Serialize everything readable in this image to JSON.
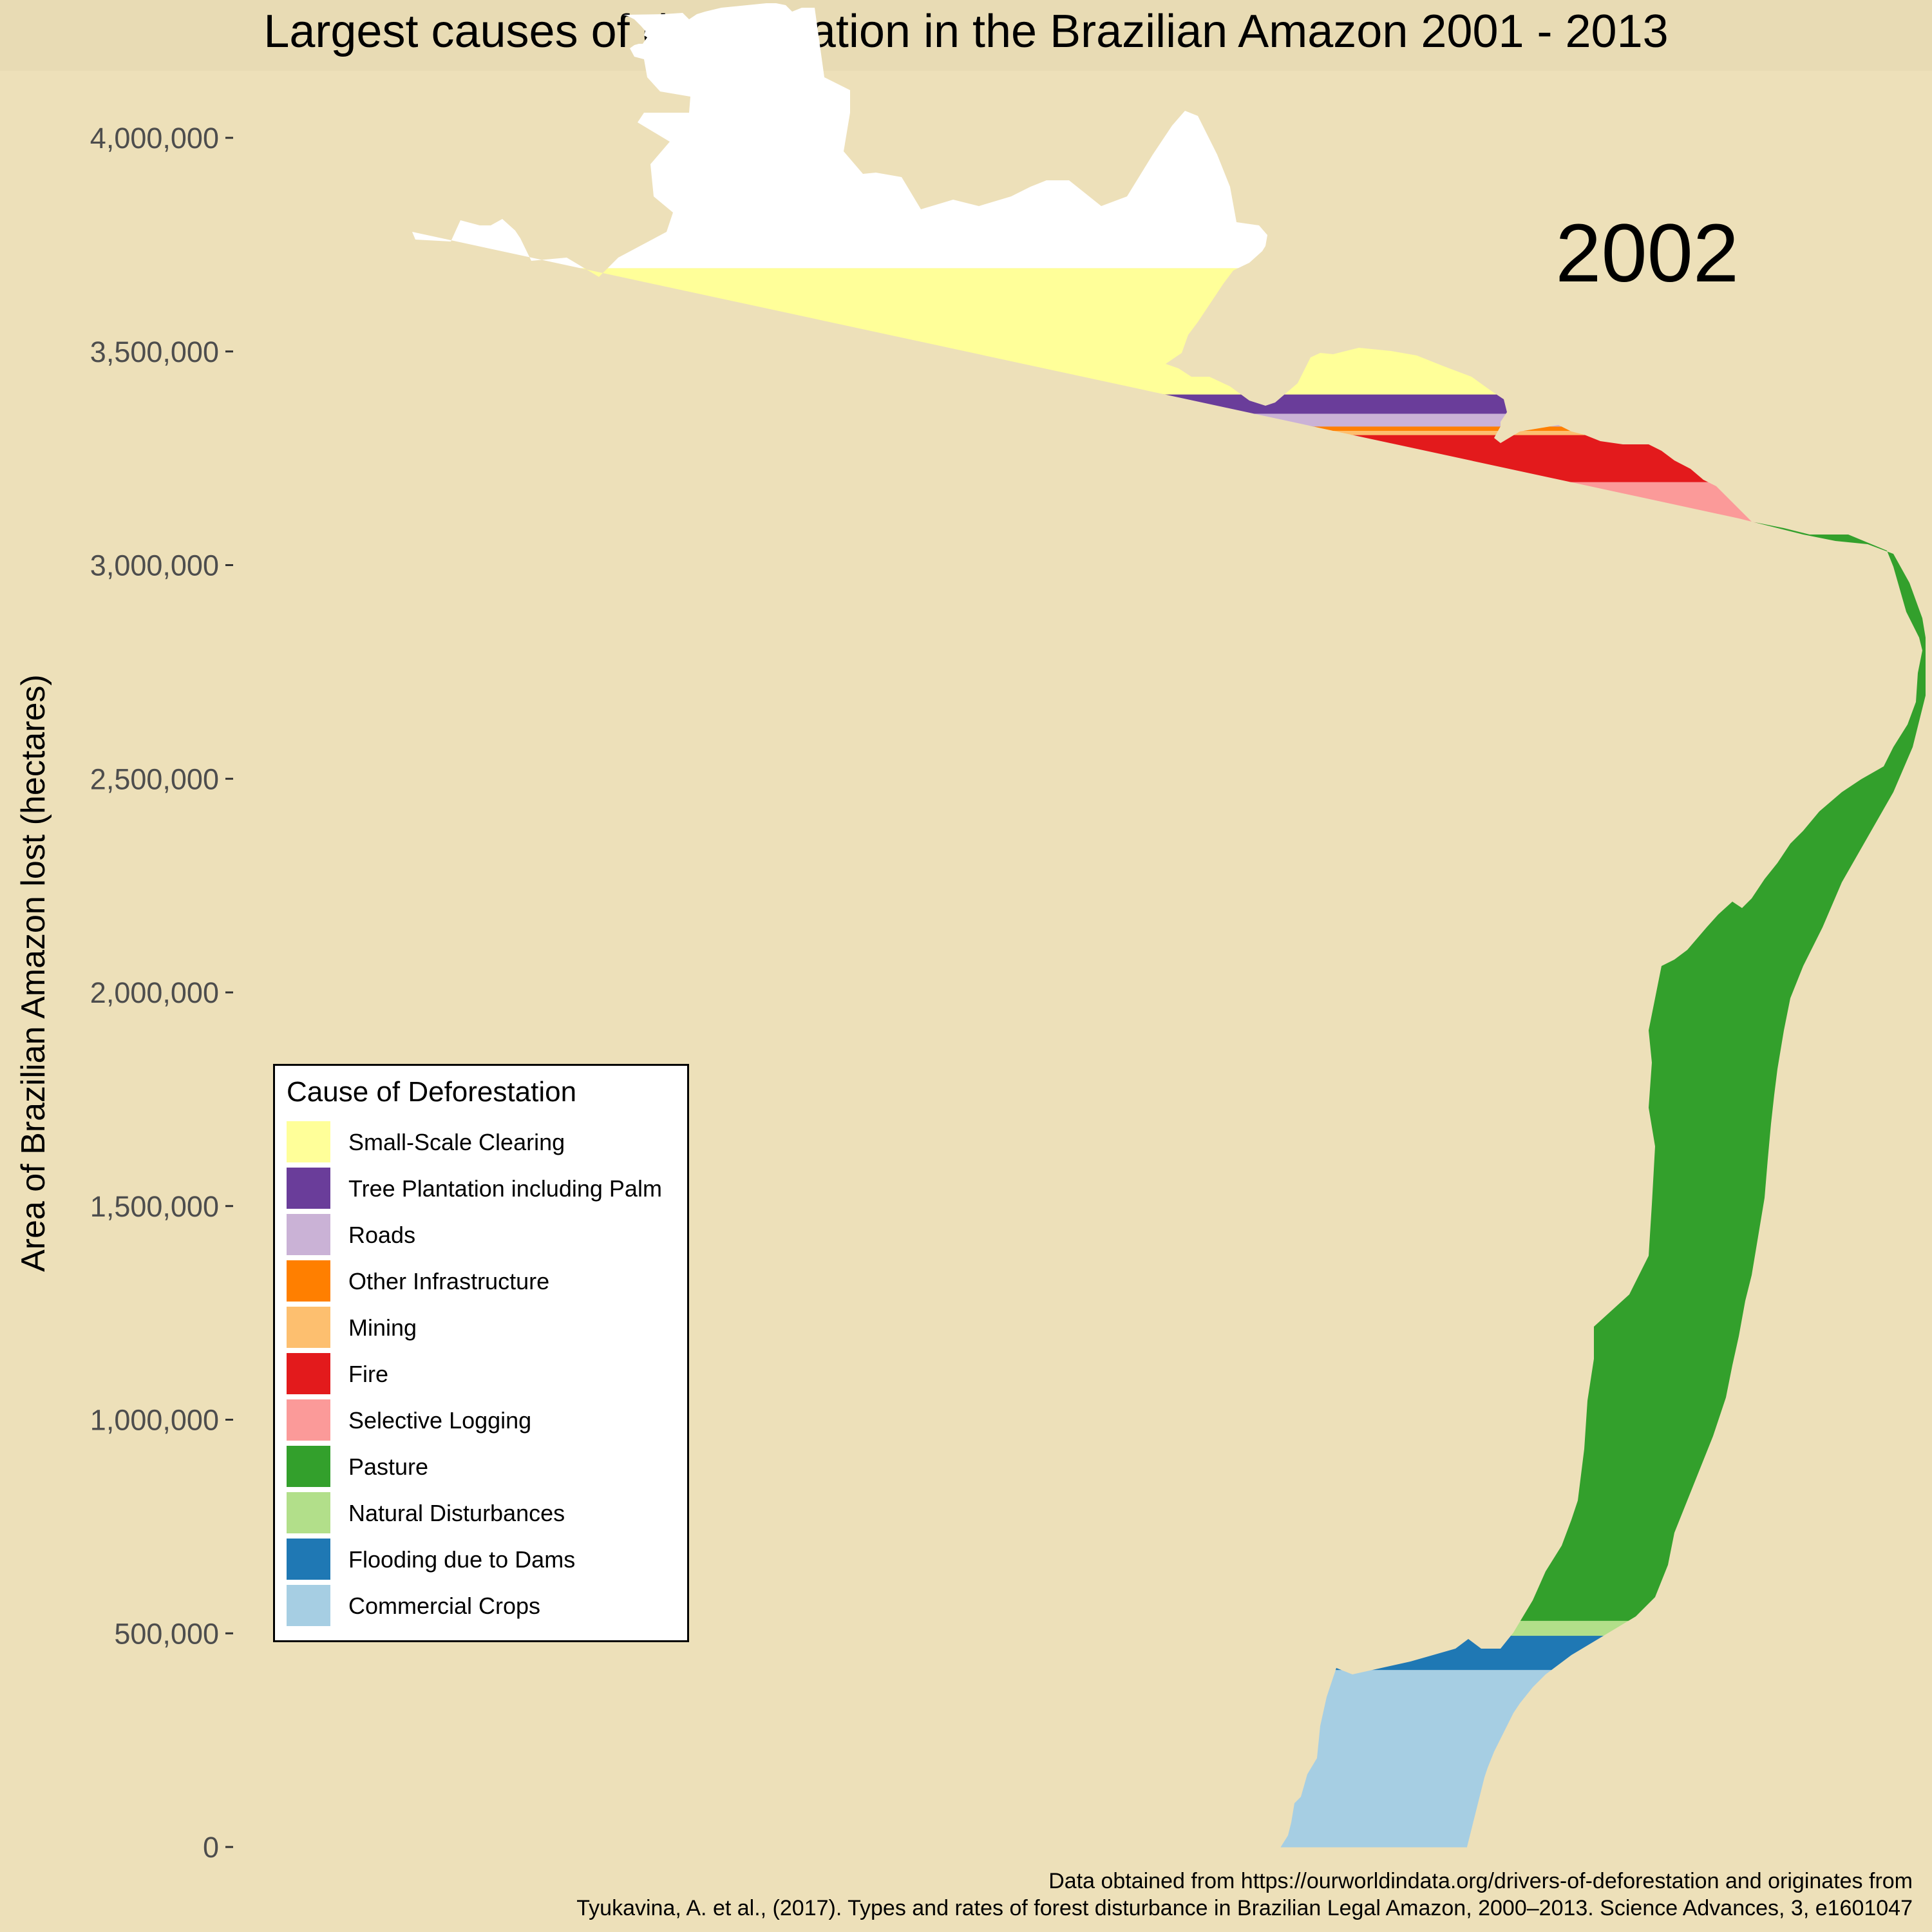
{
  "title": "Largest causes of deforestation in the Brazilian Amazon 2001 - 2013",
  "year_label": "2002",
  "ylabel": "Area of Brazilian Amazon lost (hectares)",
  "legend": {
    "title": "Cause of Deforestation",
    "items": [
      {
        "label": "Small-Scale Clearing",
        "color": "#ffff99"
      },
      {
        "label": "Tree Plantation including Palm",
        "color": "#6a3d9a"
      },
      {
        "label": "Roads",
        "color": "#cab2d6"
      },
      {
        "label": "Other Infrastructure",
        "color": "#ff7f00"
      },
      {
        "label": "Mining",
        "color": "#fdbf6f"
      },
      {
        "label": "Fire",
        "color": "#e31a1c"
      },
      {
        "label": "Selective Logging",
        "color": "#fb9a99"
      },
      {
        "label": "Pasture",
        "color": "#33a02c"
      },
      {
        "label": "Natural Disturbances",
        "color": "#b2df8a"
      },
      {
        "label": "Flooding due to Dams",
        "color": "#1f78b4"
      },
      {
        "label": "Commercial Crops",
        "color": "#a6cee3"
      }
    ]
  },
  "source": {
    "line1": "Data obtained from https://ourworldindata.org/drivers-of-deforestation and originates from",
    "line2": "Tyukavina, A. et al., (2017). Types and rates of forest disturbance in Brazilian Legal Amazon, 2000–2013. Science Advances, 3, e1601047"
  },
  "chart_data": {
    "type": "area",
    "title": "Largest causes of deforestation in the Brazilian Amazon 2001 - 2013",
    "ylabel": "Area of Brazilian Amazon lost (hectares)",
    "ylim": [
      0,
      4150000
    ],
    "yticks": [
      0,
      500000,
      1000000,
      1500000,
      2000000,
      2500000,
      3000000,
      3500000,
      4000000
    ],
    "ytick_labels": [
      "0",
      "500,000",
      "1,000,000",
      "1,500,000",
      "2,000,000",
      "2,500,000",
      "3,000,000",
      "3,500,000",
      "4,000,000"
    ],
    "year": "2002",
    "stack_order_bottom_to_top": [
      "Commercial Crops",
      "Flooding due to Dams",
      "Natural Disturbances",
      "Pasture",
      "Selective Logging",
      "Fire",
      "Mining",
      "Other Infrastructure",
      "Roads",
      "Tree Plantation including Palm",
      "Small-Scale Clearing"
    ],
    "series": [
      {
        "name": "Commercial Crops",
        "value": 415000
      },
      {
        "name": "Flooding due to Dams",
        "value": 80000
      },
      {
        "name": "Natural Disturbances",
        "value": 35000
      },
      {
        "name": "Pasture",
        "value": 2570000
      },
      {
        "name": "Selective Logging",
        "value": 95000
      },
      {
        "name": "Fire",
        "value": 110000
      },
      {
        "name": "Mining",
        "value": 10000
      },
      {
        "name": "Other Infrastructure",
        "value": 10000
      },
      {
        "name": "Roads",
        "value": 30000
      },
      {
        "name": "Tree Plantation including Palm",
        "value": 45000
      },
      {
        "name": "Small-Scale Clearing",
        "value": 295000
      }
    ],
    "grid": false,
    "legend_position": "left"
  }
}
